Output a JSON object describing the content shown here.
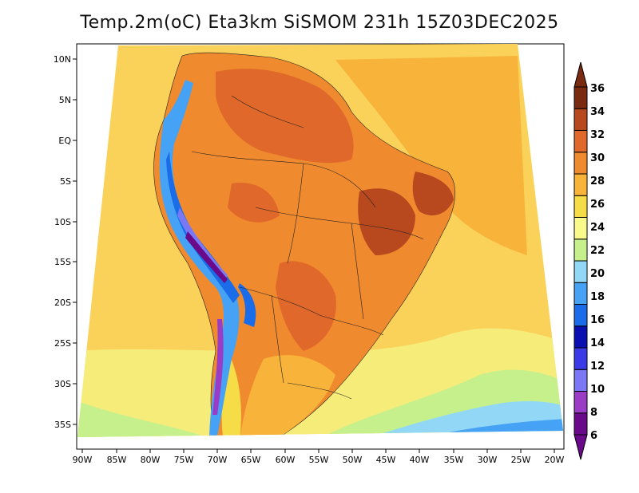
{
  "title": "Temp.2m(oC) Eta3km SiSMOM 231h 15Z03DEC2025",
  "map": {
    "lon_labels": [
      "90W",
      "85W",
      "80W",
      "75W",
      "70W",
      "65W",
      "60W",
      "55W",
      "50W",
      "45W",
      "40W",
      "35W",
      "30W",
      "25W",
      "20W"
    ],
    "lat_labels": [
      "10N",
      "5N",
      "EQ",
      "5S",
      "10S",
      "15S",
      "20S",
      "25S",
      "30S",
      "35S"
    ]
  },
  "colorbar": {
    "labels": [
      "6",
      "8",
      "10",
      "12",
      "14",
      "16",
      "18",
      "20",
      "22",
      "24",
      "26",
      "28",
      "30",
      "32",
      "34",
      "36"
    ],
    "colors": [
      "#6a0a8a",
      "#9a3cc6",
      "#7a78f4",
      "#3a3ae6",
      "#0a10b0",
      "#1a6ce8",
      "#46a2f4",
      "#92d8f6",
      "#c6f08c",
      "#fafa8c",
      "#f6dc46",
      "#f8b43a",
      "#f08a2e",
      "#e0682a",
      "#b8481e",
      "#7a2a10"
    ]
  }
}
